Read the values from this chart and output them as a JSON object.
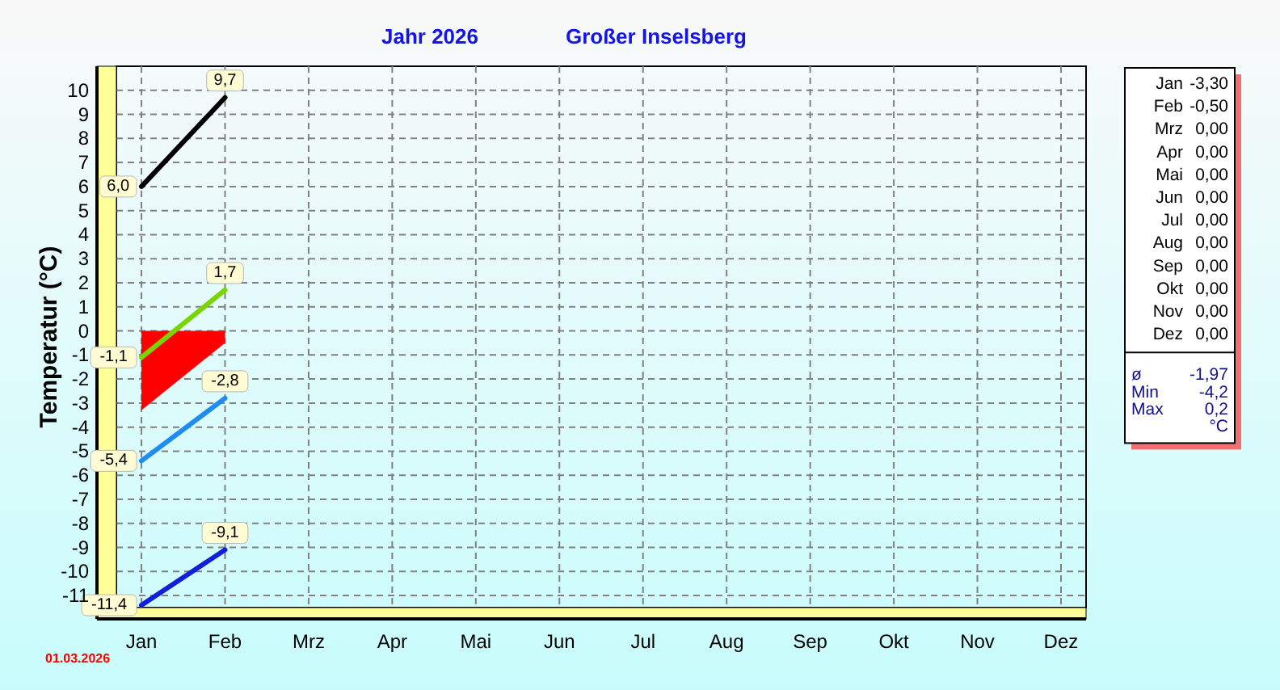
{
  "chart_data": [
    {
      "type": "line",
      "title": "Jahr 2026",
      "subtitle": "Großer Inselsberg",
      "ylabel": "Temperatur (°C)",
      "categories": [
        "Jan",
        "Feb",
        "Mrz",
        "Apr",
        "Mai",
        "Jun",
        "Jul",
        "Aug",
        "Sep",
        "Okt",
        "Nov",
        "Dez"
      ],
      "series": [
        {
          "type": "area",
          "color": "#ff0000",
          "values": [
            -3.3,
            -0.5,
            null,
            null,
            null,
            null,
            null,
            null,
            null,
            null,
            null,
            null
          ]
        },
        {
          "color": "#000000",
          "values": [
            6.0,
            9.7,
            null,
            null,
            null,
            null,
            null,
            null,
            null,
            null,
            null,
            null
          ],
          "value_labels": [
            "6,0",
            "9,7",
            null,
            null,
            null,
            null,
            null,
            null,
            null,
            null,
            null,
            null
          ]
        },
        {
          "color": "#7ad400",
          "values": [
            -1.1,
            1.7,
            null,
            null,
            null,
            null,
            null,
            null,
            null,
            null,
            null,
            null
          ],
          "value_labels": [
            "-1,1",
            "1,7",
            null,
            null,
            null,
            null,
            null,
            null,
            null,
            null,
            null,
            null
          ]
        },
        {
          "color": "#1e8cf0",
          "values": [
            -5.4,
            -2.8,
            null,
            null,
            null,
            null,
            null,
            null,
            null,
            null,
            null,
            null
          ],
          "value_labels": [
            "-5,4",
            "-2,8",
            null,
            null,
            null,
            null,
            null,
            null,
            null,
            null,
            null,
            null
          ]
        },
        {
          "color": "#1020d8",
          "values": [
            -11.4,
            -9.1,
            null,
            null,
            null,
            null,
            null,
            null,
            null,
            null,
            null,
            null
          ],
          "value_labels": [
            "-11,4",
            "-9,1",
            null,
            null,
            null,
            null,
            null,
            null,
            null,
            null,
            null,
            null
          ]
        }
      ],
      "ylim": [
        -11.5,
        11
      ],
      "yticks": [
        -11,
        -10,
        -9,
        -8,
        -7,
        -6,
        -5,
        -4,
        -3,
        -2,
        -1,
        0,
        1,
        2,
        3,
        4,
        5,
        6,
        7,
        8,
        9,
        10
      ],
      "grid": true,
      "annotations": [
        "01.03.2026"
      ]
    },
    {
      "type": "other",
      "categories": [
        "Jan",
        "Feb",
        "Mrz",
        "Apr",
        "Mai",
        "Jun",
        "Jul",
        "Aug",
        "Sep",
        "Okt",
        "Nov",
        "Dez"
      ],
      "value_labels": [
        "-3,30",
        "-0,50",
        "0,00",
        "0,00",
        "0,00",
        "0,00",
        "0,00",
        "0,00",
        "0,00",
        "0,00",
        "0,00",
        "0,00"
      ],
      "annotations": [
        "ø -1,97",
        "Min -4,2",
        "Max 0,2",
        "°C"
      ]
    }
  ]
}
